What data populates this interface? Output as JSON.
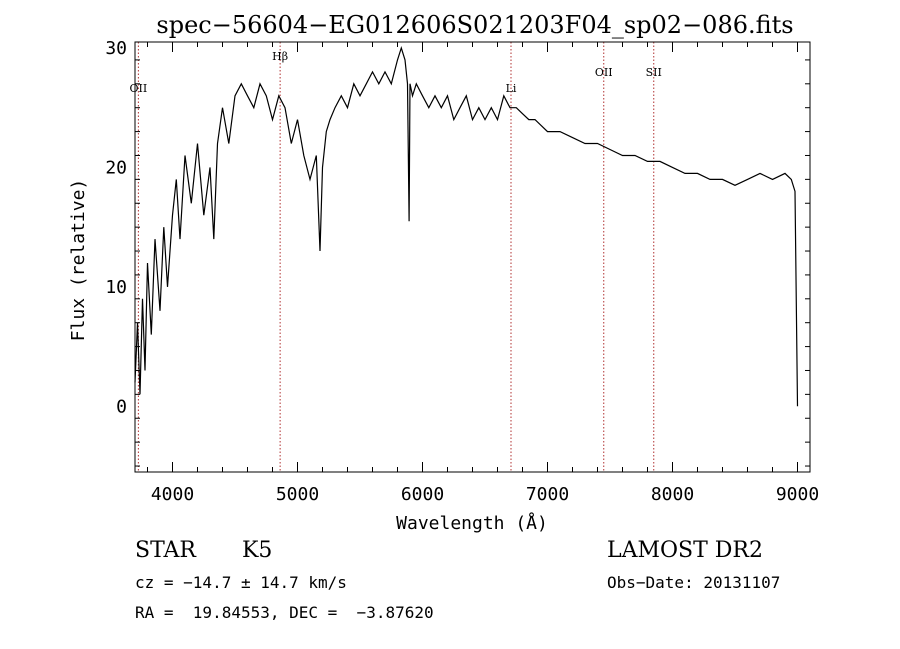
{
  "chart_data": {
    "type": "line",
    "title": "spec−56604−EG012606S021203F04_sp02−086.fits",
    "xlabel": "Wavelength (Å)",
    "ylabel": "Flux (relative)",
    "xlim": [
      3700,
      9100
    ],
    "ylim": [
      -5.5,
      30.5
    ],
    "xticks": [
      4000,
      5000,
      6000,
      7000,
      8000,
      9000
    ],
    "yticks": [
      0,
      10,
      20,
      30
    ],
    "grid": false,
    "series": [
      {
        "x": [
          3700,
          3720,
          3740,
          3760,
          3780,
          3800,
          3830,
          3860,
          3900,
          3930,
          3960,
          4000,
          4030,
          4060,
          4100,
          4150,
          4200,
          4250,
          4300,
          4330,
          4360,
          4400,
          4450,
          4500,
          4550,
          4600,
          4650,
          4700,
          4750,
          4800,
          4850,
          4900,
          4950,
          5000,
          5050,
          5100,
          5150,
          5180,
          5200,
          5230,
          5260,
          5300,
          5350,
          5400,
          5450,
          5500,
          5550,
          5600,
          5650,
          5700,
          5750,
          5800,
          5830,
          5860,
          5880,
          5893,
          5900,
          5920,
          5950,
          6000,
          6050,
          6100,
          6150,
          6200,
          6250,
          6300,
          6350,
          6400,
          6450,
          6500,
          6550,
          6600,
          6650,
          6700,
          6750,
          6800,
          6850,
          6900,
          7000,
          7100,
          7200,
          7300,
          7400,
          7500,
          7600,
          7700,
          7800,
          7900,
          8000,
          8100,
          8200,
          8300,
          8400,
          8500,
          8600,
          8700,
          8800,
          8900,
          8950,
          8980,
          9000
        ],
        "y": [
          2,
          7,
          1,
          9,
          3,
          12,
          6,
          14,
          8,
          15,
          10,
          16,
          19,
          14,
          21,
          17,
          22,
          16,
          20,
          14,
          22,
          25,
          22,
          26,
          27,
          26,
          25,
          27,
          26,
          24,
          26,
          25,
          22,
          24,
          21,
          19,
          21,
          13,
          20,
          23,
          24,
          25,
          26,
          25,
          27,
          26,
          27,
          28,
          27,
          28,
          27,
          29,
          30,
          29,
          27,
          15.5,
          27,
          26,
          27,
          26,
          25,
          26,
          25,
          26,
          24,
          25,
          26,
          24,
          25,
          24,
          25,
          24,
          26,
          25,
          25,
          24.5,
          24,
          24,
          23,
          23,
          22.5,
          22,
          22,
          21.5,
          21,
          21,
          20.5,
          20.5,
          20,
          19.5,
          19.5,
          19,
          19,
          18.5,
          19,
          19.5,
          19,
          19.5,
          19,
          18,
          0
        ]
      }
    ],
    "annotations": [
      {
        "label": "OII",
        "x": 3727
      },
      {
        "label": "Hβ",
        "x": 4861
      },
      {
        "label": "Li",
        "x": 6708
      },
      {
        "label": "OII",
        "x": 7450
      },
      {
        "label": "SII",
        "x": 7850
      }
    ]
  },
  "info": {
    "class_label": "STAR",
    "subclass_label": "K5",
    "survey": "LAMOST DR2",
    "cz": "cz = −14.7 ± 14.7 km/s",
    "obs_date": "Obs−Date: 20131107",
    "coords": "RA =  19.84553, DEC =  −3.87620"
  }
}
